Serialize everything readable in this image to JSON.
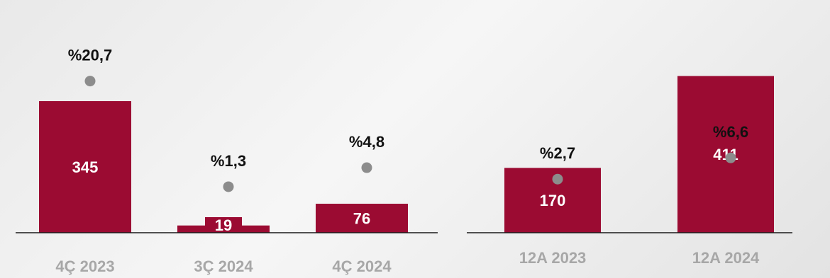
{
  "chart_data": [
    {
      "type": "bar",
      "categories": [
        "4Ç 2023",
        "3Ç 2024",
        "4Ç 2024"
      ],
      "values": [
        345,
        19,
        76
      ],
      "value_labels": [
        "345",
        "19",
        "76"
      ],
      "secondary": {
        "type": "scatter",
        "values": [
          20.7,
          1.3,
          4.8
        ],
        "labels": [
          "%20,7",
          "%1,3",
          "%4,8"
        ]
      },
      "colors": {
        "bar": "#9b0b32",
        "marker": "#8c8c8c",
        "category_text": "#a7a7a7"
      }
    },
    {
      "type": "bar",
      "categories": [
        "12A 2023",
        "12A 2024"
      ],
      "values": [
        170,
        411
      ],
      "value_labels": [
        "170",
        "411"
      ],
      "secondary": {
        "type": "scatter",
        "values": [
          2.7,
          6.6
        ],
        "labels": [
          "%2,7",
          "%6,6"
        ]
      },
      "colors": {
        "bar": "#9b0b32",
        "marker": "#8c8c8c",
        "category_text": "#a7a7a7"
      }
    }
  ]
}
